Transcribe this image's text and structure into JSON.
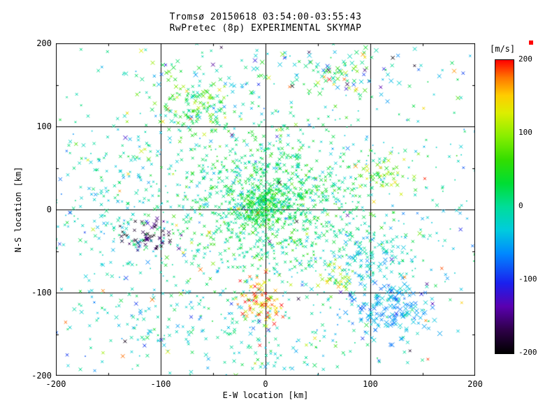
{
  "title": {
    "line1": "Tromsø 20150618 03:54:00-03:55:43",
    "line2": "RwPretec (8p) EXPERIMENTAL SKYMAP"
  },
  "axes": {
    "xlabel": "E-W location [km]",
    "ylabel": "N-S location [km]",
    "xlim": [
      -200,
      200
    ],
    "ylim": [
      -200,
      200
    ],
    "xticks": [
      "-200",
      "-100",
      "0",
      "100",
      "200"
    ],
    "yticks": [
      "200",
      "100",
      "0",
      "-100",
      "-200"
    ],
    "grid_values": [
      -100,
      0,
      100
    ],
    "minor_tick_step": 50,
    "axis_color": "#000000"
  },
  "colorbar": {
    "label": "[m/s]",
    "ticks": [
      "200",
      "100",
      "0",
      "-100",
      "-200"
    ],
    "vmin": -200,
    "vmax": 200,
    "stops": [
      {
        "t": 0.0,
        "c": "#000000"
      },
      {
        "t": 0.08,
        "c": "#2e0048"
      },
      {
        "t": 0.16,
        "c": "#5a00b0"
      },
      {
        "t": 0.24,
        "c": "#1a20ee"
      },
      {
        "t": 0.34,
        "c": "#0088ff"
      },
      {
        "t": 0.42,
        "c": "#00ccdd"
      },
      {
        "t": 0.5,
        "c": "#00dd99"
      },
      {
        "t": 0.58,
        "c": "#00dd33"
      },
      {
        "t": 0.66,
        "c": "#33dd00"
      },
      {
        "t": 0.74,
        "c": "#88ee00"
      },
      {
        "t": 0.82,
        "c": "#ddee00"
      },
      {
        "t": 0.88,
        "c": "#ffcc00"
      },
      {
        "t": 0.94,
        "c": "#ff7700"
      },
      {
        "t": 1.0,
        "c": "#ff0000"
      }
    ],
    "max_marker_color": "#ff0000"
  },
  "chart_data": {
    "type": "scatter",
    "title": "Tromsø 20150618 03:54:00-03:55:43 - RwPretec (8p) EXPERIMENTAL SKYMAP",
    "xlabel": "E-W location [km]",
    "ylabel": "N-S location [km]",
    "xlim": [
      -200,
      200
    ],
    "ylim": [
      -200,
      200
    ],
    "value_label": "[m/s]",
    "vlim": [
      -200,
      200
    ],
    "marker": "x",
    "grid": true,
    "legend": "colorbar-right",
    "seed": 20150618,
    "clusters": [
      {
        "name": "background-field",
        "dist": "gauss",
        "cx": 0,
        "cy": -15,
        "sx": 125,
        "sy": 100,
        "n": 1050,
        "v": -10,
        "vs": 30,
        "size": 1.5
      },
      {
        "name": "central-core",
        "dist": "gauss",
        "cx": 2,
        "cy": 8,
        "sx": 45,
        "sy": 40,
        "n": 800,
        "v": 20,
        "vs": 28,
        "size": 1.8
      },
      {
        "name": "central-dense",
        "dist": "gauss",
        "cx": -3,
        "cy": 3,
        "sx": 16,
        "sy": 13,
        "n": 220,
        "v": 35,
        "vs": 30,
        "size": 1.8
      },
      {
        "name": "north-green-patch",
        "dist": "gauss",
        "cx": -62,
        "cy": 122,
        "sx": 20,
        "sy": 16,
        "n": 140,
        "v": 45,
        "vs": 45,
        "size": 2.2
      },
      {
        "name": "top-band",
        "dist": "gauss",
        "cx": 10,
        "cy": 165,
        "sx": 80,
        "sy": 14,
        "n": 75,
        "v": 0,
        "vs": 55,
        "size": 2.6
      },
      {
        "name": "south-orange-jet",
        "dist": "gauss",
        "cx": -4,
        "cy": -112,
        "sx": 11,
        "sy": 15,
        "n": 85,
        "v": 150,
        "vs": 40,
        "size": 2.2
      },
      {
        "name": "east-orange-pocket",
        "dist": "gauss",
        "cx": 68,
        "cy": -84,
        "sx": 9,
        "sy": 8,
        "n": 30,
        "v": 115,
        "vs": 30,
        "size": 2.2
      },
      {
        "name": "west-dark-cluster",
        "dist": "gauss",
        "cx": -112,
        "cy": -32,
        "sx": 13,
        "sy": 11,
        "n": 60,
        "v": -175,
        "vs": 25,
        "size": 2.0
      },
      {
        "name": "southeast-cyan",
        "dist": "gauss",
        "cx": 120,
        "cy": -120,
        "sx": 24,
        "sy": 19,
        "n": 160,
        "v": -45,
        "vs": 22,
        "size": 2.8
      },
      {
        "name": "east-cyan",
        "dist": "gauss",
        "cx": 88,
        "cy": -58,
        "sx": 20,
        "sy": 16,
        "n": 80,
        "v": -30,
        "vs": 22,
        "size": 2.4
      },
      {
        "name": "east-yellow-patch",
        "dist": "gauss",
        "cx": 112,
        "cy": 38,
        "sx": 13,
        "sy": 11,
        "n": 45,
        "v": 90,
        "vs": 40,
        "size": 2.2
      },
      {
        "name": "northeast-mixed",
        "dist": "gauss",
        "cx": 80,
        "cy": 162,
        "sx": 18,
        "sy": 12,
        "n": 45,
        "v": 30,
        "vs": 80,
        "size": 2.6
      },
      {
        "name": "west-band",
        "dist": "gauss",
        "cx": -145,
        "cy": 15,
        "sx": 28,
        "sy": 45,
        "n": 90,
        "v": -15,
        "vs": 22,
        "size": 2.0
      },
      {
        "name": "southwest-sparse",
        "dist": "gauss",
        "cx": -95,
        "cy": -140,
        "sx": 38,
        "sy": 26,
        "n": 70,
        "v": -15,
        "vs": 35,
        "size": 2.2
      },
      {
        "name": "south-sparse",
        "dist": "gauss",
        "cx": 5,
        "cy": -165,
        "sx": 30,
        "sy": 15,
        "n": 40,
        "v": -5,
        "vs": 25,
        "size": 2.0
      },
      {
        "name": "outliers",
        "dist": "uniform",
        "n": 130,
        "v": 0,
        "vs": 200,
        "size": 2.4
      }
    ]
  }
}
